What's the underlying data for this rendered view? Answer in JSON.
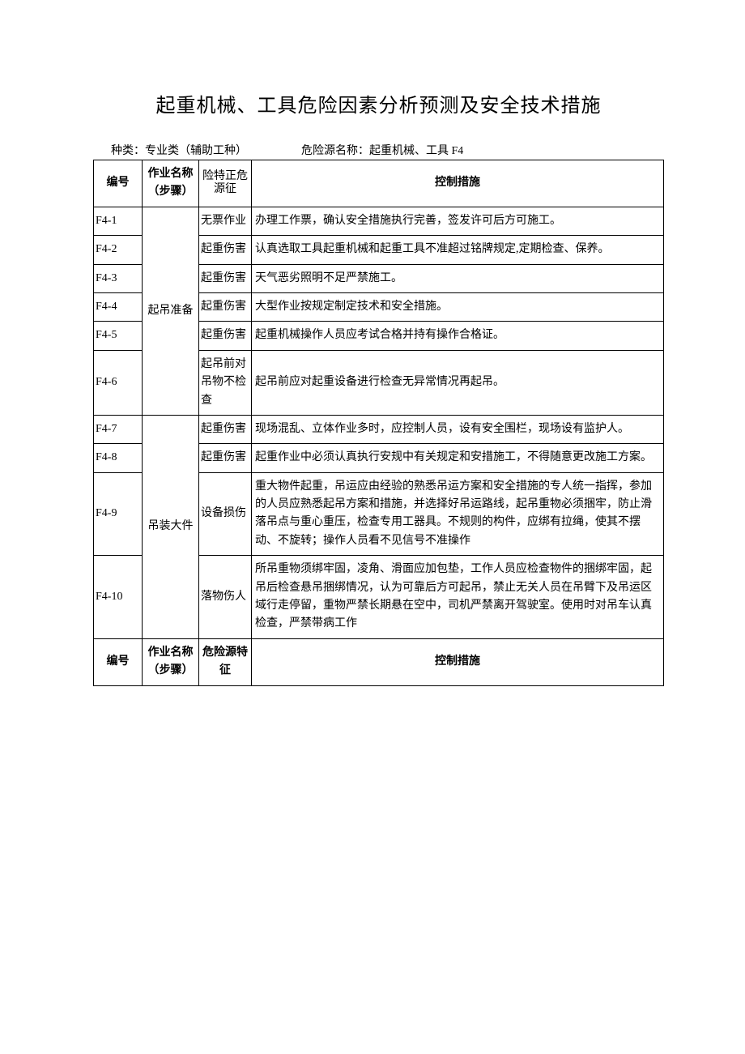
{
  "title": "起重机械、工具危险因素分析预测及安全技术措施",
  "meta": {
    "category_label": "种类：专业类（辅助工种）",
    "source_label": "危险源名称：起重机械、工具 F4"
  },
  "headers": {
    "id": "编号",
    "step": "作业名称（步骤）",
    "hazard_vertical": "险特正危源征",
    "hazard": "危险源特征",
    "measure": "控制措施"
  },
  "group1": {
    "step": "起吊准备",
    "rows": [
      {
        "id": "F4-1",
        "hazard": "无票作业",
        "measure": "办理工作票，确认安全措施执行完善，签发许可后方可施工。"
      },
      {
        "id": "F4-2",
        "hazard": "起重伤害",
        "measure": "认真选取工具起重机械和起重工具不准超过铭牌规定,定期检查、保养。"
      },
      {
        "id": "F4-3",
        "hazard": "起重伤害",
        "measure": "天气恶劣照明不足严禁施工。"
      },
      {
        "id": "F4-4",
        "hazard": "起重伤害",
        "measure": "大型作业按规定制定技术和安全措施。"
      },
      {
        "id": "F4-5",
        "hazard": "起重伤害",
        "measure": "起重机械操作人员应考试合格并持有操作合格证。"
      },
      {
        "id": "F4-6",
        "hazard": "起吊前对吊物不检查",
        "measure": "起吊前应对起重设备进行检查无异常情况再起吊。"
      }
    ]
  },
  "group2": {
    "step": "吊装大件",
    "rows": [
      {
        "id": "F4-7",
        "hazard": "起重伤害",
        "measure": "现场混乱、立体作业多时，应控制人员，设有安全围栏，现场设有监护人。"
      },
      {
        "id": "F4-8",
        "hazard": "起重伤害",
        "measure": "起重作业中必须认真执行安规中有关规定和安措施工，不得随意更改施工方案。"
      },
      {
        "id": "F4-9",
        "hazard": "设备损伤",
        "measure": "重大物件起重，吊运应由经验的熟悉吊运方案和安全措施的专人统一指挥，参加的人员应熟悉起吊方案和措施，并选择好吊运路线，起吊重物必须捆牢，防止滑落吊点与重心重压，检查专用工器具。不规则的构件，应绑有拉绳，使其不摆动、不旋转；操作人员看不见信号不准操作"
      },
      {
        "id": "F4-10",
        "hazard": "落物伤人",
        "measure": "所吊重物须绑牢固，凌角、滑面应加包垫，工作人员应检查物件的捆绑牢固，起吊后检查悬吊捆绑情况，认为可靠后方可起吊，禁止无关人员在吊臂下及吊运区域行走停留，重物严禁长期悬在空中，司机严禁离开驾驶室。使用时对吊车认真检查，严禁带病工作"
      }
    ]
  }
}
